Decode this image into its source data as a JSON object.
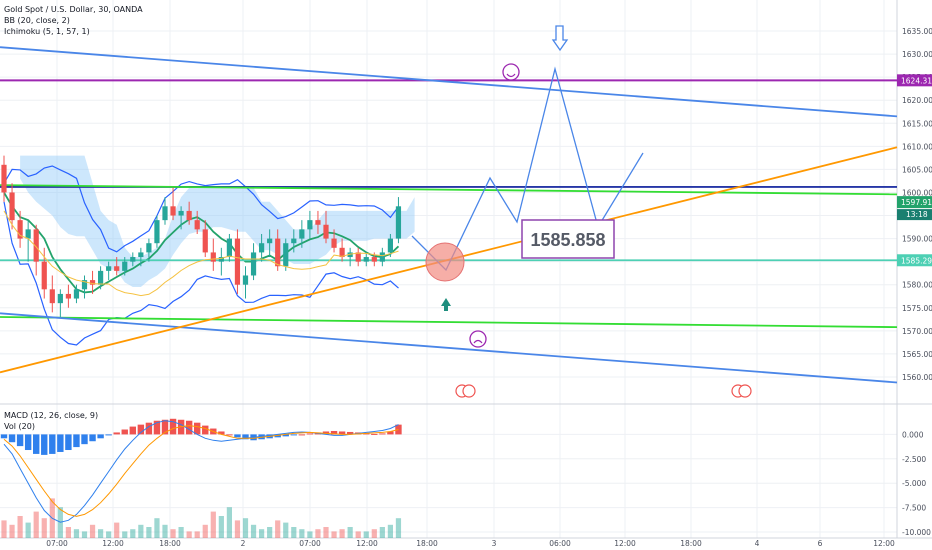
{
  "legend_main": [
    "Gold Spot / U.S. Dollar, 30, OANDA",
    "BB (20, close, 2)",
    "Ichimoku (5, 1, 57, 1)"
  ],
  "legend_sub": [
    "MACD (12, 26, close, 9)",
    "Vol (20)"
  ],
  "colors": {
    "bull": "#26a69a",
    "bear": "#ef5350",
    "bb": "#2962ff",
    "kijun": "#23a36b",
    "cloud": "#90caf9",
    "trend_orange": "#ff9800",
    "channel_blue": "#4a86e8",
    "purple": "#9c27b0",
    "green_line": "#33dd33",
    "cyan": "#4dd0b4",
    "navy": "#2636a6",
    "macd": "#2f80ed",
    "signal": "#ff9800"
  },
  "annotation_label": "1585.858",
  "chart_data": [
    {
      "type": "candlestick",
      "title": "Gold Spot / U.S. Dollar, 30, OANDA",
      "ylim": [
        1555,
        1640
      ],
      "y_ticks": [
        "1635.000",
        "1630.000",
        "1625.000",
        "1620.000",
        "1615.000",
        "1610.000",
        "1605.000",
        "1600.000",
        "1595.000",
        "1590.000",
        "1585.000",
        "1580.000",
        "1575.000",
        "1570.000",
        "1565.000",
        "1560.000"
      ],
      "x_ticks": [
        "07:00",
        "12:00",
        "18:00",
        "2",
        "07:00",
        "12:00",
        "18:00",
        "3",
        "06:00",
        "12:00",
        "18:00",
        "4",
        "6",
        "12:00"
      ],
      "ohlc": [
        [
          1606,
          1608,
          1598,
          1600
        ],
        [
          1600,
          1602,
          1592,
          1594
        ],
        [
          1594,
          1596,
          1588,
          1590
        ],
        [
          1590,
          1594,
          1585,
          1592
        ],
        [
          1592,
          1593,
          1582,
          1585
        ],
        [
          1585,
          1588,
          1577,
          1579
        ],
        [
          1579,
          1582,
          1574,
          1576
        ],
        [
          1576,
          1579,
          1573,
          1578
        ],
        [
          1578,
          1580,
          1575,
          1577
        ],
        [
          1577,
          1580,
          1576,
          1579
        ],
        [
          1579,
          1582,
          1577,
          1581
        ],
        [
          1581,
          1583,
          1578,
          1580
        ],
        [
          1580,
          1584,
          1579,
          1583
        ],
        [
          1583,
          1585,
          1581,
          1584
        ],
        [
          1584,
          1586,
          1582,
          1583
        ],
        [
          1583,
          1586,
          1582,
          1585
        ],
        [
          1585,
          1587,
          1584,
          1586
        ],
        [
          1586,
          1588,
          1584,
          1587
        ],
        [
          1587,
          1590,
          1585,
          1589
        ],
        [
          1589,
          1595,
          1588,
          1594
        ],
        [
          1594,
          1599,
          1593,
          1597
        ],
        [
          1597,
          1601,
          1594,
          1595
        ],
        [
          1595,
          1597,
          1592,
          1596
        ],
        [
          1596,
          1598,
          1593,
          1594
        ],
        [
          1594,
          1596,
          1591,
          1592
        ],
        [
          1592,
          1594,
          1586,
          1587
        ],
        [
          1587,
          1590,
          1583,
          1585
        ],
        [
          1585,
          1588,
          1582,
          1586
        ],
        [
          1586,
          1591,
          1585,
          1590
        ],
        [
          1590,
          1592,
          1578,
          1580
        ],
        [
          1580,
          1584,
          1577,
          1582
        ],
        [
          1582,
          1589,
          1581,
          1587
        ],
        [
          1587,
          1591,
          1585,
          1589
        ],
        [
          1589,
          1592,
          1586,
          1590
        ],
        [
          1590,
          1592,
          1583,
          1584
        ],
        [
          1584,
          1590,
          1583,
          1589
        ],
        [
          1589,
          1592,
          1587,
          1590
        ],
        [
          1590,
          1594,
          1588,
          1592
        ],
        [
          1592,
          1596,
          1590,
          1594
        ],
        [
          1594,
          1596,
          1591,
          1593
        ],
        [
          1593,
          1596,
          1589,
          1590
        ],
        [
          1590,
          1592,
          1587,
          1588
        ],
        [
          1588,
          1590,
          1585,
          1586
        ],
        [
          1586,
          1588,
          1584,
          1587
        ],
        [
          1587,
          1588,
          1584,
          1585
        ],
        [
          1585,
          1587,
          1584,
          1586
        ],
        [
          1586,
          1587,
          1584,
          1585
        ],
        [
          1585,
          1588,
          1584,
          1587
        ],
        [
          1587,
          1591,
          1586,
          1590
        ],
        [
          1590,
          1599,
          1589,
          1597
        ]
      ],
      "horizontal_levels": [
        {
          "value": 1624.316,
          "label": "1624.316"
        },
        {
          "value": 1597.91,
          "label": "1597.910"
        },
        {
          "value": 1585.299,
          "label": "1585.299"
        }
      ],
      "countdown_label": "13:18"
    },
    {
      "type": "bar",
      "title": "MACD (12, 26, close, 9)",
      "ylim": [
        -10,
        2.5
      ],
      "y_ticks": [
        "0.000",
        "-2.500",
        "-5.000",
        "-7.500",
        "-10.000"
      ],
      "histogram": [
        -0.4,
        -0.8,
        -1.2,
        -1.6,
        -2.0,
        -2.1,
        -2.0,
        -1.8,
        -1.6,
        -1.3,
        -1.0,
        -0.7,
        -0.4,
        -0.1,
        0.2,
        0.5,
        0.8,
        1.0,
        1.2,
        1.4,
        1.5,
        1.6,
        1.5,
        1.4,
        1.2,
        0.9,
        0.6,
        0.3,
        0.0,
        -0.3,
        -0.5,
        -0.6,
        -0.5,
        -0.4,
        -0.3,
        -0.2,
        -0.1,
        0.0,
        0.1,
        0.2,
        0.3,
        0.35,
        0.3,
        0.25,
        0.2,
        0.1,
        0.05,
        0.1,
        0.3,
        1.0
      ],
      "macd": [
        -1,
        -2,
        -3.5,
        -5,
        -6.5,
        -7.8,
        -8.6,
        -9.0,
        -8.8,
        -8.2,
        -7.3,
        -6.2,
        -5.0,
        -3.8,
        -2.6,
        -1.5,
        -0.6,
        0.2,
        0.8,
        1.2,
        1.4,
        1.3,
        1.0,
        0.5,
        0.0,
        -0.4,
        -0.6,
        -0.7,
        -0.6,
        -0.5,
        -0.4,
        -0.3,
        -0.2,
        -0.1,
        0.0,
        0.1,
        0.2,
        0.25,
        0.2,
        0.1,
        0.0,
        -0.1,
        -0.1,
        0.0,
        0.1,
        0.2,
        0.3,
        0.4,
        0.6,
        1.0
      ],
      "signal": [
        -0.5,
        -1.2,
        -2.2,
        -3.4,
        -4.6,
        -5.8,
        -6.9,
        -7.7,
        -8.2,
        -8.4,
        -8.2,
        -7.7,
        -7.0,
        -6.1,
        -5.1,
        -4.0,
        -3.0,
        -2.0,
        -1.1,
        -0.4,
        0.2,
        0.6,
        0.8,
        0.9,
        0.8,
        0.6,
        0.3,
        0.0,
        -0.2,
        -0.4,
        -0.4,
        -0.4,
        -0.3,
        -0.2,
        -0.1,
        0.0,
        0.1,
        0.15,
        0.2,
        0.15,
        0.1,
        0.05,
        0.0,
        0.0,
        0.05,
        0.1,
        0.15,
        0.2,
        0.3,
        0.5
      ]
    }
  ]
}
